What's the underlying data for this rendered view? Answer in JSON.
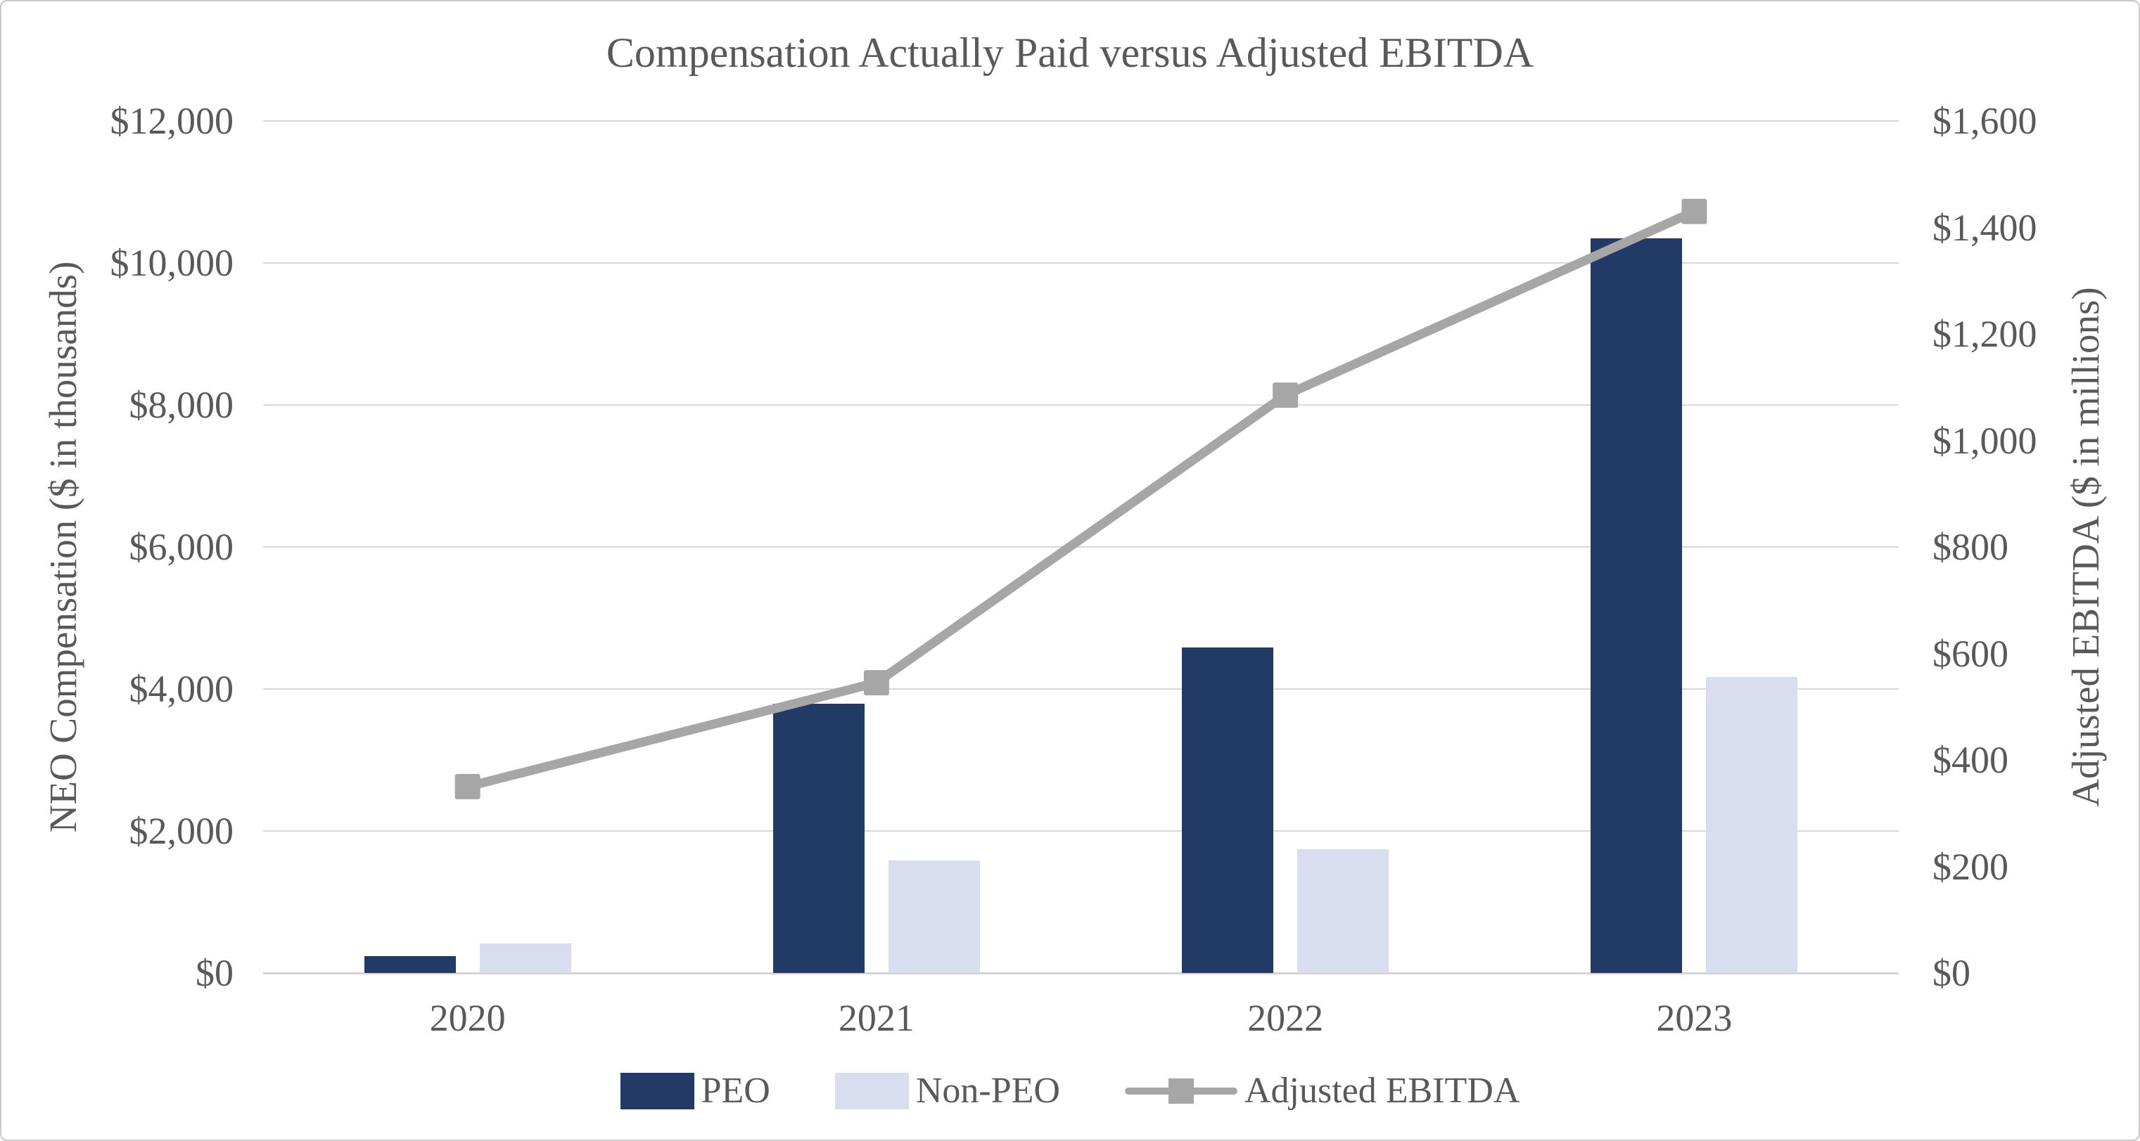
{
  "title": "Compensation Actually Paid versus Adjusted EBITDA",
  "left_axis": {
    "title": "NEO Compensation ($ in thousands)",
    "tick_labels": [
      "$0",
      "$2,000",
      "$4,000",
      "$6,000",
      "$8,000",
      "$10,000",
      "$12,000"
    ],
    "min": 0,
    "max": 12000,
    "step": 2000
  },
  "right_axis": {
    "title": "Adjusted EBITDA ($ in millions)",
    "tick_labels": [
      "$0",
      "$200",
      "$400",
      "$600",
      "$800",
      "$1,000",
      "$1,200",
      "$1,400",
      "$1,600"
    ],
    "min": 0,
    "max": 1600,
    "step": 200
  },
  "x_axis": {
    "categories": [
      "2020",
      "2021",
      "2022",
      "2023"
    ]
  },
  "legend": {
    "items": [
      {
        "label": "PEO",
        "type": "bar",
        "color": "#213A66"
      },
      {
        "label": "Non-PEO",
        "type": "bar",
        "color": "#D8DEF0"
      },
      {
        "label": "Adjusted EBITDA",
        "type": "line",
        "color": "#A6A6A6"
      }
    ]
  },
  "colors": {
    "peo_bar": "#213A66",
    "non_peo_bar": "#D8DEF0",
    "ebitda_line": "#A6A6A6",
    "text": "#595959",
    "gridline": "#D9D9D9",
    "axis_line": "#D4D4D4",
    "border": "#C9C9C9"
  },
  "chart_data": {
    "type": "combo",
    "title": "Compensation Actually Paid versus Adjusted EBITDA",
    "categories": [
      "2020",
      "2021",
      "2022",
      "2023"
    ],
    "series": [
      {
        "name": "PEO",
        "type": "bar",
        "axis": "left",
        "color": "#213A66",
        "values": [
          240,
          3790,
          4580,
          10350
        ]
      },
      {
        "name": "Non-PEO",
        "type": "bar",
        "axis": "left",
        "color": "#D8DEF0",
        "values": [
          420,
          1580,
          1740,
          4170
        ]
      },
      {
        "name": "Adjusted EBITDA",
        "type": "line",
        "axis": "right",
        "color": "#A6A6A6",
        "values": [
          350,
          545,
          1085,
          1430
        ]
      }
    ],
    "left_ylabel": "NEO Compensation ($ in thousands)",
    "right_ylabel": "Adjusted EBITDA ($ in millions)",
    "xlabel": "",
    "left_ylim": [
      0,
      12000
    ],
    "right_ylim": [
      0,
      1600
    ],
    "grid": true,
    "legend_position": "bottom"
  }
}
